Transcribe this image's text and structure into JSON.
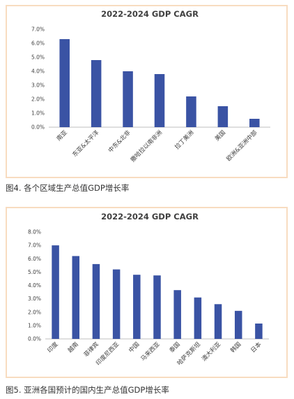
{
  "chart_data": [
    {
      "type": "bar",
      "title": "2022-2024 GDP CAGR",
      "categories": [
        "南亚",
        "东亚&太平洋",
        "中东&北非",
        "撒哈拉以南非洲",
        "拉丁美洲",
        "美国",
        "欧洲&亚洲中部"
      ],
      "values": [
        6.3,
        4.8,
        4.0,
        3.8,
        2.2,
        1.5,
        0.6
      ],
      "y_ticks": [
        "0.0%",
        "1.0%",
        "2.0%",
        "3.0%",
        "4.0%",
        "5.0%",
        "6.0%",
        "7.0%"
      ],
      "ylim": [
        0,
        7
      ],
      "xlabel": "",
      "ylabel": "",
      "grid": false,
      "bar_color": "#3a53a4"
    },
    {
      "type": "bar",
      "title": "2022-2024 GDP CAGR",
      "categories": [
        "印度",
        "越南",
        "菲律宾",
        "印度尼西亚",
        "中国",
        "马来西亚",
        "泰国",
        "哈萨克斯坦",
        "澳大利亚",
        "韩国",
        "日本"
      ],
      "values": [
        7.0,
        6.2,
        5.6,
        5.2,
        4.8,
        4.75,
        3.65,
        3.1,
        2.6,
        2.1,
        1.15
      ],
      "y_ticks": [
        "0.0%",
        "1.0%",
        "2.0%",
        "3.0%",
        "4.0%",
        "5.0%",
        "6.0%",
        "7.0%",
        "8.0%"
      ],
      "ylim": [
        0,
        8
      ],
      "xlabel": "",
      "ylabel": "",
      "grid": false,
      "bar_color": "#3a53a4"
    }
  ],
  "captions": {
    "figure4": "图4. 各个区域生产总值GDP增长率",
    "figure5": "图5. 亚洲各国预计的国内生产总值GDP增长率"
  },
  "colors": {
    "border": "#f8dcc0",
    "bar": "#3a53a4",
    "axis": "#bfbfbf",
    "text": "#404040"
  }
}
